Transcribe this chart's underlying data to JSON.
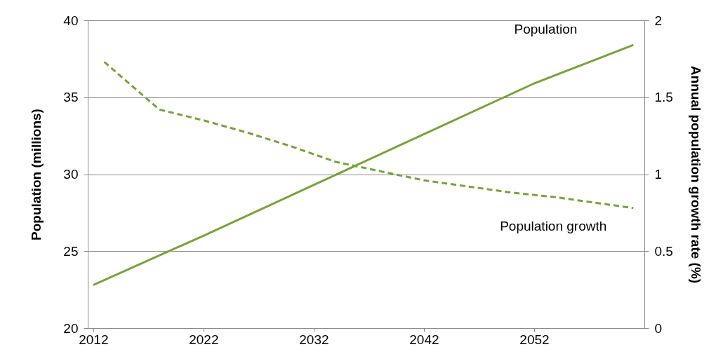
{
  "chart_data": {
    "type": "line",
    "ylabel": "Population (millions)",
    "y2label": "Annual population growth rate (%)",
    "xlim": [
      2011.5,
      2062
    ],
    "xticks": [
      2012,
      2022,
      2032,
      2042,
      2052
    ],
    "ylim": [
      20,
      40
    ],
    "yticks": [
      20,
      25,
      30,
      35,
      40
    ],
    "y2lim": [
      0,
      2
    ],
    "y2ticks": [
      0,
      0.5,
      1,
      1.5,
      2
    ],
    "grid": "y",
    "series": [
      {
        "name": "Population",
        "color": "#77a33a",
        "line_style": "solid",
        "x": [
          2012,
          2022,
          2032,
          2042,
          2052,
          2061
        ],
        "values": [
          22.8,
          26.0,
          29.3,
          32.6,
          35.9,
          38.4
        ]
      },
      {
        "name": "Population growth",
        "color": "#77a33a",
        "line_style": "dashed",
        "axis": "y2",
        "x": [
          2013,
          2018,
          2022,
          2026,
          2030,
          2034,
          2038,
          2042,
          2046,
          2050,
          2054,
          2058,
          2061
        ],
        "values": [
          1.73,
          1.42,
          1.35,
          1.27,
          1.18,
          1.08,
          1.02,
          0.96,
          0.92,
          0.88,
          0.85,
          0.81,
          0.78
        ]
      }
    ]
  }
}
